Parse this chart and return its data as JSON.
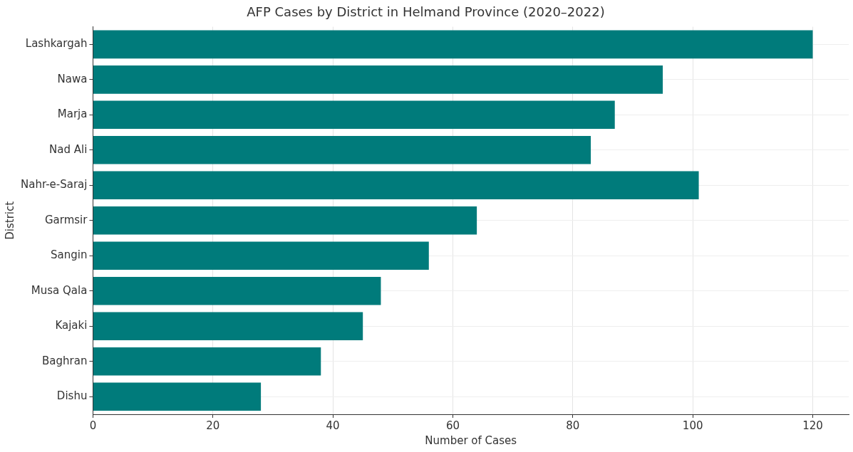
{
  "chart_data": {
    "type": "bar",
    "orientation": "horizontal",
    "title": "AFP Cases by District in Helmand Province (2020–2022)",
    "xlabel": "Number of Cases",
    "ylabel": "District",
    "categories": [
      "Lashkargah",
      "Nawa",
      "Marja",
      "Nad Ali",
      "Nahr-e-Saraj",
      "Garmsir",
      "Sangin",
      "Musa Qala",
      "Kajaki",
      "Baghran",
      "Dishu"
    ],
    "values": [
      120,
      95,
      87,
      83,
      101,
      64,
      56,
      48,
      45,
      38,
      28
    ],
    "color": "#007b7b",
    "xlim": [
      0,
      126
    ],
    "xticks": [
      0,
      20,
      40,
      60,
      80,
      100,
      120
    ],
    "grid": true
  }
}
